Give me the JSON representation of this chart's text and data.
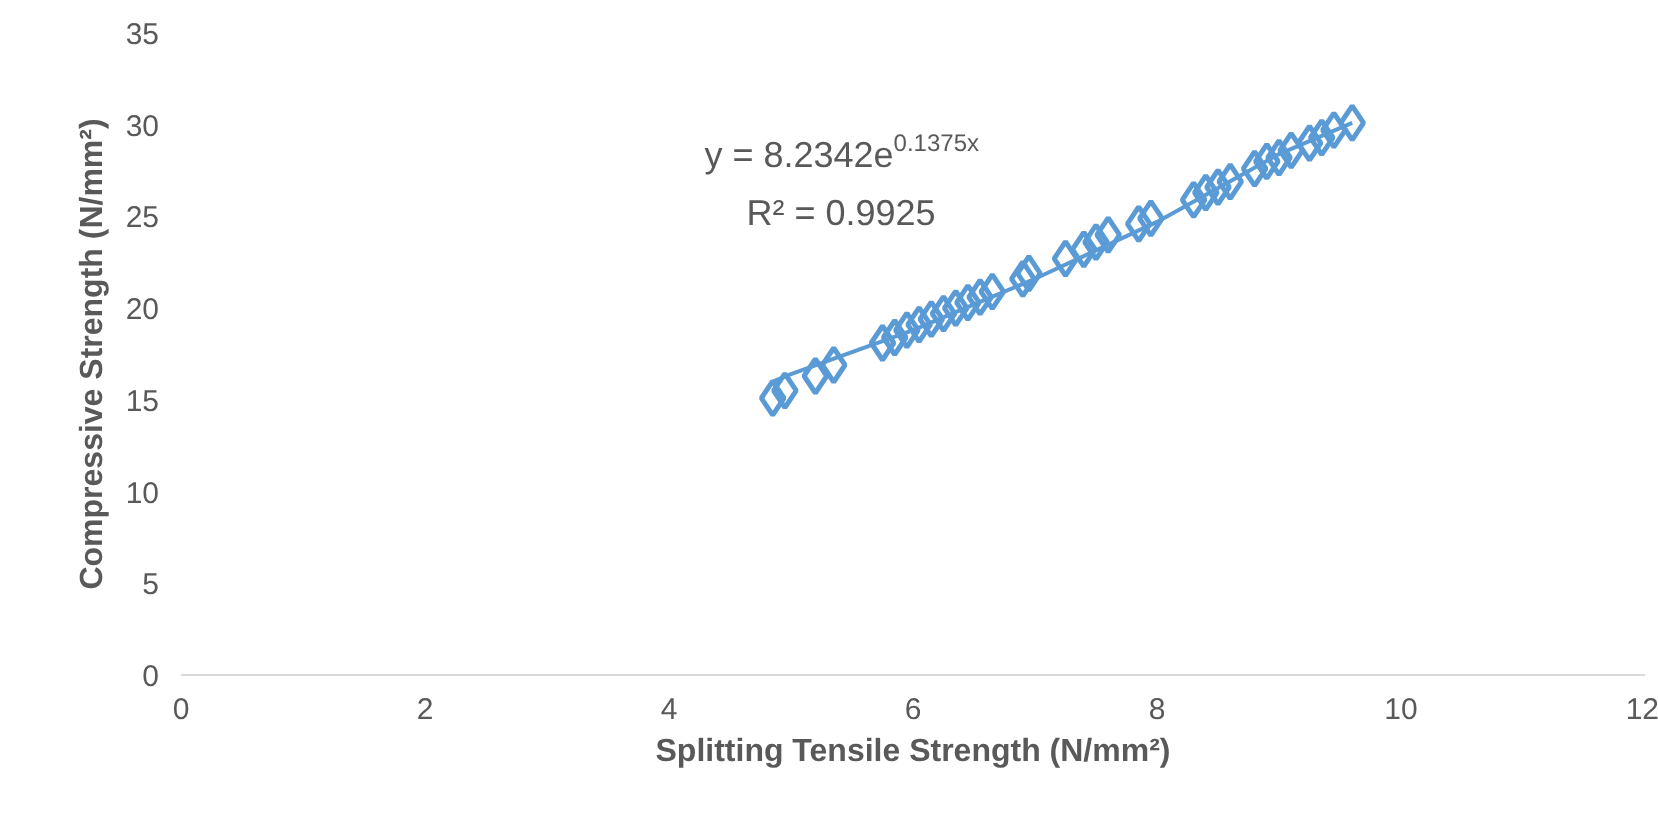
{
  "chart_data": {
    "type": "scatter",
    "xlabel": "Splitting Tensile Strength (N/mm²)",
    "ylabel": "Compressive Strength (N/mm²)",
    "xlim": [
      0,
      12
    ],
    "xticks": [
      0,
      2,
      4,
      6,
      8,
      10,
      12
    ],
    "ylim": [
      0,
      35
    ],
    "yticks": [
      0,
      5,
      10,
      15,
      20,
      25,
      30,
      35
    ],
    "grid": false,
    "annotations": [
      "y = 8.2342e$^{0.1375x}$",
      "R² = 0.9925"
    ],
    "series": [
      {
        "color": "#5b9bd5",
        "marker": "diamond",
        "x": [
          4.85,
          4.95,
          5.2,
          5.35,
          5.75,
          5.85,
          5.95,
          6.05,
          6.15,
          6.25,
          6.35,
          6.45,
          6.55,
          6.65,
          6.9,
          6.95,
          7.25,
          7.4,
          7.5,
          7.6,
          7.85,
          7.95,
          8.3,
          8.4,
          8.5,
          8.6,
          8.8,
          8.9,
          9.0,
          9.1,
          9.25,
          9.35,
          9.45,
          9.6
        ],
        "values": [
          15.1,
          15.5,
          16.3,
          16.9,
          18.1,
          18.4,
          18.8,
          19.1,
          19.4,
          19.7,
          20.0,
          20.3,
          20.6,
          20.9,
          21.6,
          21.9,
          22.7,
          23.2,
          23.6,
          24.0,
          24.6,
          24.9,
          25.9,
          26.3,
          26.6,
          26.9,
          27.6,
          28.0,
          28.2,
          28.6,
          29.0,
          29.3,
          29.7,
          30.1
        ]
      },
      {
        "type": "line",
        "color": "#5b9bd5",
        "marker": "none",
        "line_style": "solid",
        "x": [
          4.85,
          5,
          6,
          7,
          8,
          9,
          9.6
        ],
        "values": [
          16.0,
          16.4,
          18.8,
          21.6,
          24.7,
          28.4,
          30.1
        ]
      }
    ]
  }
}
